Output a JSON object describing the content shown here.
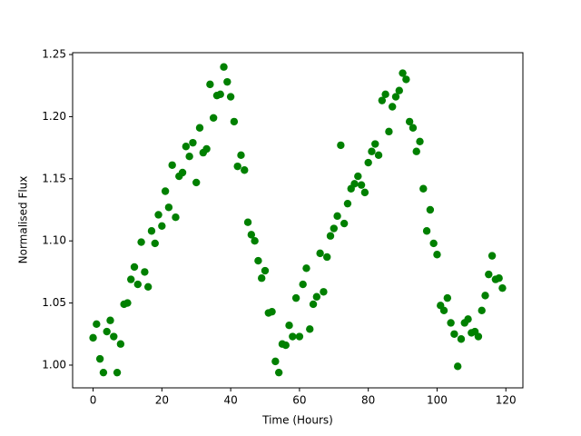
{
  "chart_data": {
    "type": "scatter",
    "x_label": "Time (Hours)",
    "y_label": "Normalised Flux",
    "x": [
      0,
      1,
      2,
      3,
      4,
      5,
      6,
      7,
      8,
      9,
      10,
      11,
      12,
      13,
      14,
      15,
      16,
      17,
      18,
      19,
      20,
      21,
      22,
      23,
      24,
      25,
      26,
      27,
      28,
      29,
      30,
      31,
      32,
      33,
      34,
      35,
      36,
      37,
      38,
      39,
      40,
      41,
      42,
      43,
      44,
      45,
      46,
      47,
      48,
      49,
      50,
      51,
      52,
      53,
      54,
      55,
      56,
      57,
      58,
      59,
      60,
      61,
      62,
      63,
      64,
      65,
      66,
      67,
      68,
      69,
      70,
      71,
      72,
      73,
      74,
      75,
      76,
      77,
      78,
      79,
      80,
      81,
      82,
      83,
      84,
      85,
      86,
      87,
      88,
      89,
      90,
      91,
      92,
      93,
      94,
      95,
      96,
      97,
      98,
      99,
      100,
      101,
      102,
      103,
      104,
      105,
      106,
      107,
      108,
      109,
      110,
      111,
      112,
      113,
      114,
      115,
      116,
      117,
      118,
      119
    ],
    "series": [
      {
        "color": "#008000",
        "values": [
          1.022,
          1.033,
          1.005,
          0.994,
          1.027,
          1.036,
          1.023,
          0.994,
          1.017,
          1.049,
          1.05,
          1.069,
          1.079,
          1.065,
          1.099,
          1.075,
          1.063,
          1.108,
          1.098,
          1.121,
          1.112,
          1.14,
          1.127,
          1.161,
          1.119,
          1.152,
          1.155,
          1.176,
          1.168,
          1.179,
          1.147,
          1.191,
          1.171,
          1.174,
          1.226,
          1.199,
          1.217,
          1.218,
          1.24,
          1.228,
          1.216,
          1.196,
          1.16,
          1.169,
          1.157,
          1.115,
          1.105,
          1.1,
          1.084,
          1.07,
          1.076,
          1.042,
          1.043,
          1.003,
          0.994,
          1.017,
          1.016,
          1.032,
          1.023,
          1.054,
          1.023,
          1.065,
          1.078,
          1.029,
          1.049,
          1.055,
          1.09,
          1.059,
          1.087,
          1.104,
          1.11,
          1.12,
          1.177,
          1.114,
          1.13,
          1.142,
          1.146,
          1.152,
          1.145,
          1.139,
          1.163,
          1.172,
          1.178,
          1.169,
          1.213,
          1.218,
          1.188,
          1.208,
          1.216,
          1.221,
          1.235,
          1.23,
          1.196,
          1.191,
          1.172,
          1.18,
          1.142,
          1.108,
          1.125,
          1.098,
          1.089,
          1.048,
          1.044,
          1.054,
          1.034,
          1.025,
          0.999,
          1.021,
          1.034,
          1.037,
          1.026,
          1.027,
          1.023,
          1.044,
          1.056,
          1.073,
          1.088,
          1.069,
          1.07,
          1.062
        ]
      }
    ],
    "xlim": [
      -5.95,
      124.95
    ],
    "ylim": [
      0.9817,
      1.2515
    ],
    "xticks": [
      0,
      20,
      40,
      60,
      80,
      100,
      120
    ],
    "yticks": [
      {
        "value": 1,
        "label": "1.00"
      },
      1.05,
      {
        "value": 1.1,
        "label": "1.10"
      },
      1.15,
      {
        "value": 1.2,
        "label": "1.20"
      },
      1.25
    ]
  }
}
